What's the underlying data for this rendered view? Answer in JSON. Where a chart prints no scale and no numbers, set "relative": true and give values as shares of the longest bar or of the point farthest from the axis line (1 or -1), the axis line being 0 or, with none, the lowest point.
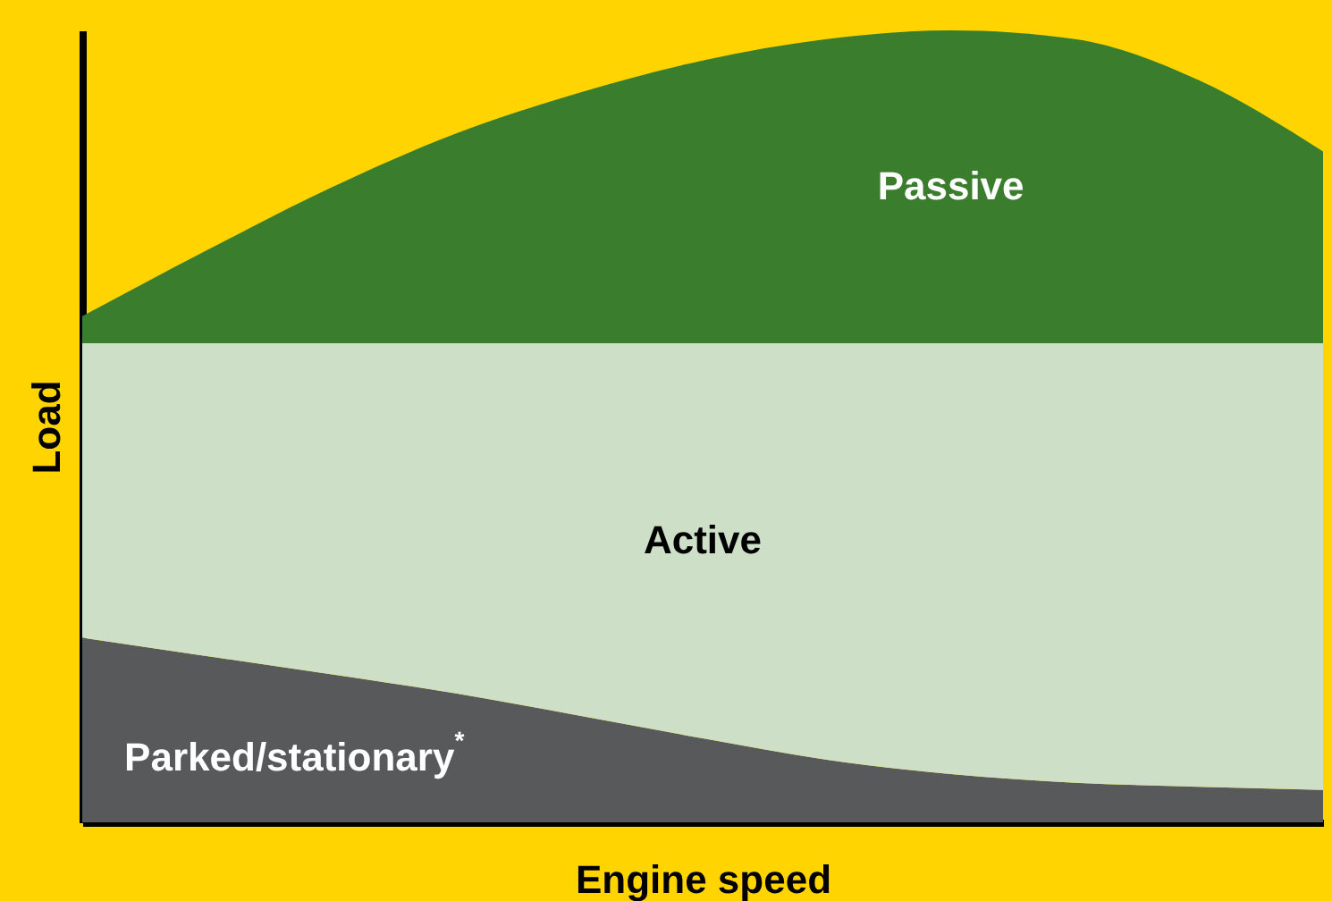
{
  "chart_data": {
    "type": "area",
    "stacked": true,
    "relative": true,
    "xlabel": "Engine speed",
    "ylabel": "Load",
    "categories": [
      null,
      null,
      null,
      null,
      null,
      null,
      null,
      null,
      null,
      null,
      null
    ],
    "series": [
      {
        "name": "Parked/stationary$^{*}$",
        "color": "#58595b",
        "values": [
          0.233,
          0.21,
          0.187,
          0.163,
          0.135,
          0.106,
          0.079,
          0.061,
          0.05,
          0.045,
          0.041
        ]
      },
      {
        "name": "Active",
        "color": "#cddfc6",
        "values": [
          0.372,
          0.395,
          0.418,
          0.442,
          0.47,
          0.499,
          0.526,
          0.544,
          0.555,
          0.56,
          0.564
        ]
      },
      {
        "name": "Passive",
        "color": "#3a7d2c",
        "values": [
          0.034,
          0.117,
          0.196,
          0.264,
          0.316,
          0.357,
          0.384,
          0.395,
          0.384,
          0.332,
          0.242
        ]
      }
    ]
  }
}
